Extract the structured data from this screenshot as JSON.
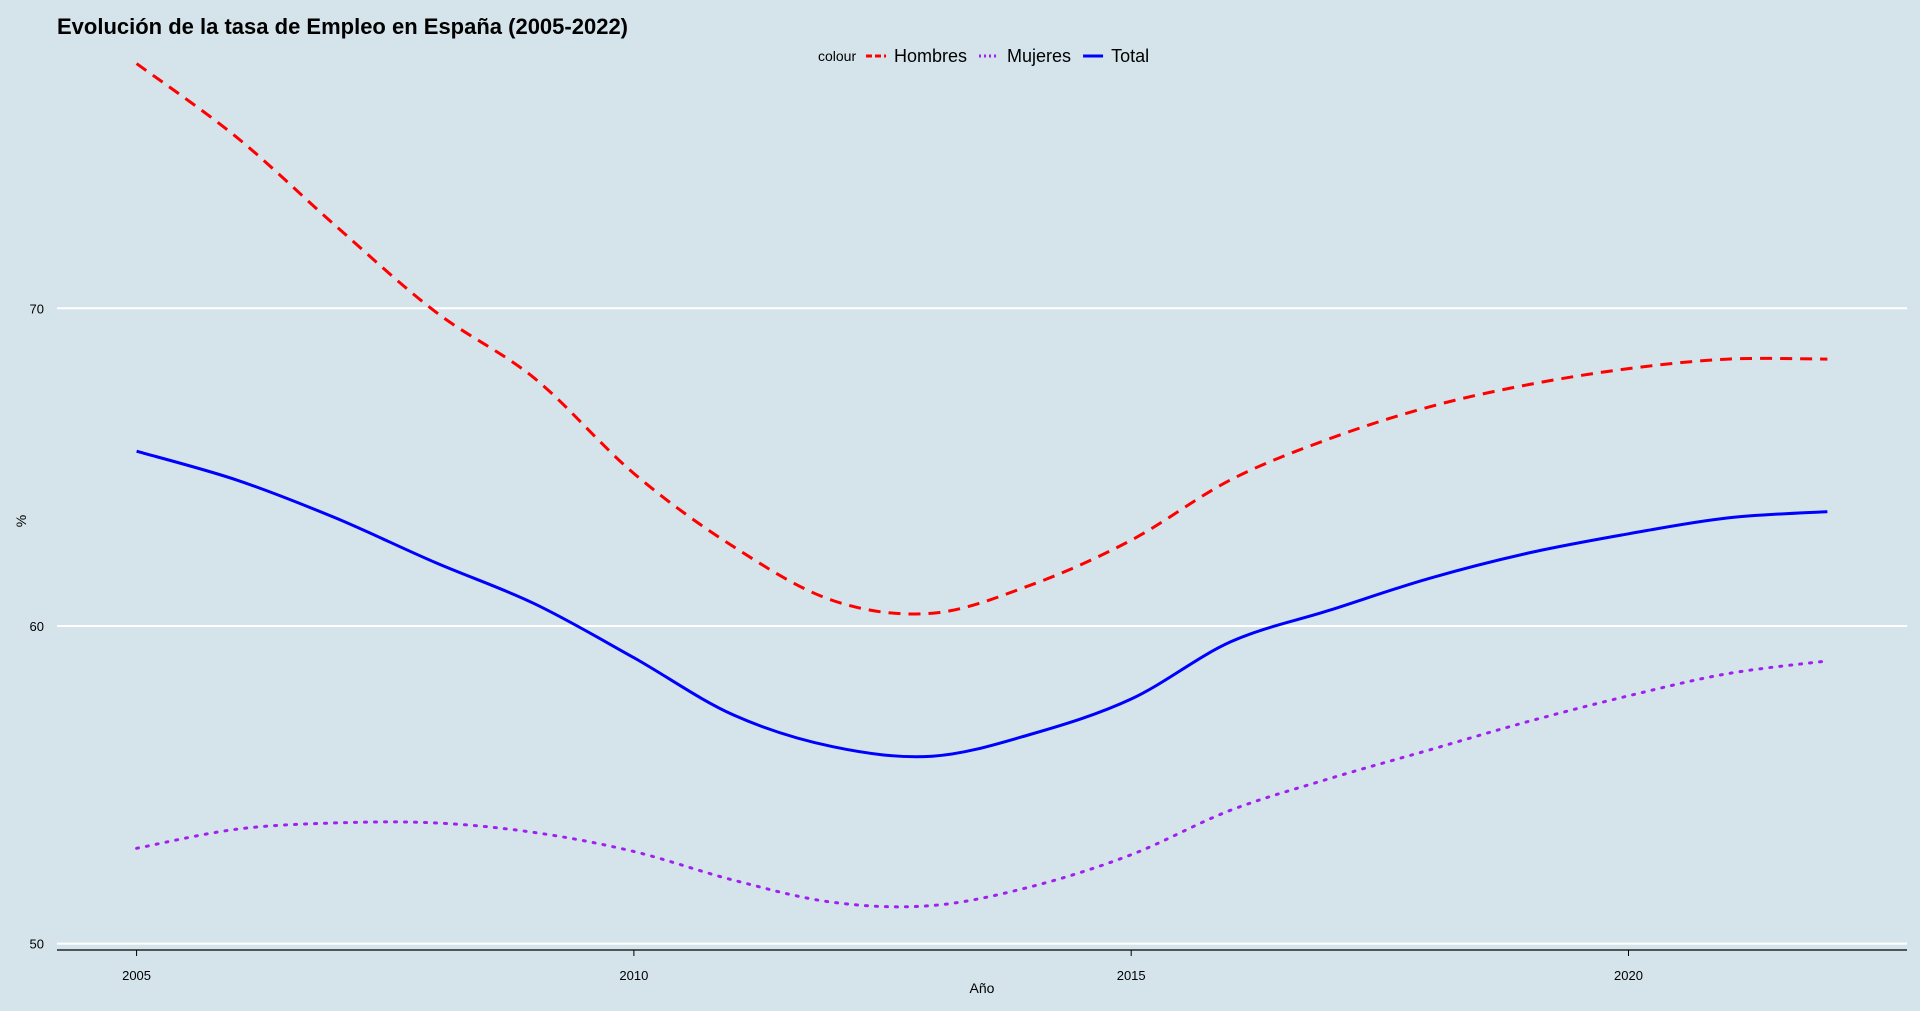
{
  "chart_data": {
    "type": "line",
    "title": "Evolución de la tasa de Empleo en España (2005-2022)",
    "xlabel": "Año",
    "ylabel": "%",
    "xlim": [
      2004.2,
      2022.8
    ],
    "ylim": [
      49.8,
      77.5
    ],
    "x_ticks": [
      2005,
      2010,
      2015,
      2020
    ],
    "y_ticks": [
      50,
      60,
      70
    ],
    "grid": "horizontal-major",
    "legend": {
      "position": "top-center",
      "title": "colour",
      "entries": [
        "Hombres",
        "Mujeres",
        "Total"
      ]
    },
    "series": [
      {
        "name": "Hombres",
        "color": "#ff0000",
        "style": "dashed",
        "x": [
          2005,
          2006,
          2007,
          2008,
          2009,
          2010,
          2011,
          2012,
          2013,
          2014,
          2015,
          2016,
          2017,
          2018,
          2019,
          2020,
          2021,
          2022
        ],
        "values": [
          77.7,
          75.4,
          72.6,
          69.9,
          67.8,
          64.8,
          62.5,
          60.8,
          60.4,
          61.3,
          62.7,
          64.6,
          65.9,
          66.9,
          67.6,
          68.1,
          68.4,
          68.4
        ]
      },
      {
        "name": "Mujeres",
        "color": "#a020f0",
        "style": "dotted",
        "x": [
          2005,
          2006,
          2007,
          2008,
          2009,
          2010,
          2011,
          2012,
          2013,
          2014,
          2015,
          2016,
          2017,
          2018,
          2019,
          2020,
          2021,
          2022
        ],
        "values": [
          53.0,
          53.6,
          53.8,
          53.8,
          53.5,
          52.9,
          52.0,
          51.3,
          51.2,
          51.8,
          52.8,
          54.2,
          55.2,
          56.1,
          57.0,
          57.8,
          58.5,
          58.9
        ]
      },
      {
        "name": "Total",
        "color": "#0000ff",
        "style": "solid",
        "x": [
          2005,
          2006,
          2007,
          2008,
          2009,
          2010,
          2011,
          2012,
          2013,
          2014,
          2015,
          2016,
          2017,
          2018,
          2019,
          2020,
          2021,
          2022
        ],
        "values": [
          65.5,
          64.6,
          63.4,
          62.0,
          60.7,
          59.0,
          57.2,
          56.2,
          55.9,
          56.6,
          57.7,
          59.5,
          60.5,
          61.5,
          62.3,
          62.9,
          63.4,
          63.6
        ]
      }
    ]
  }
}
